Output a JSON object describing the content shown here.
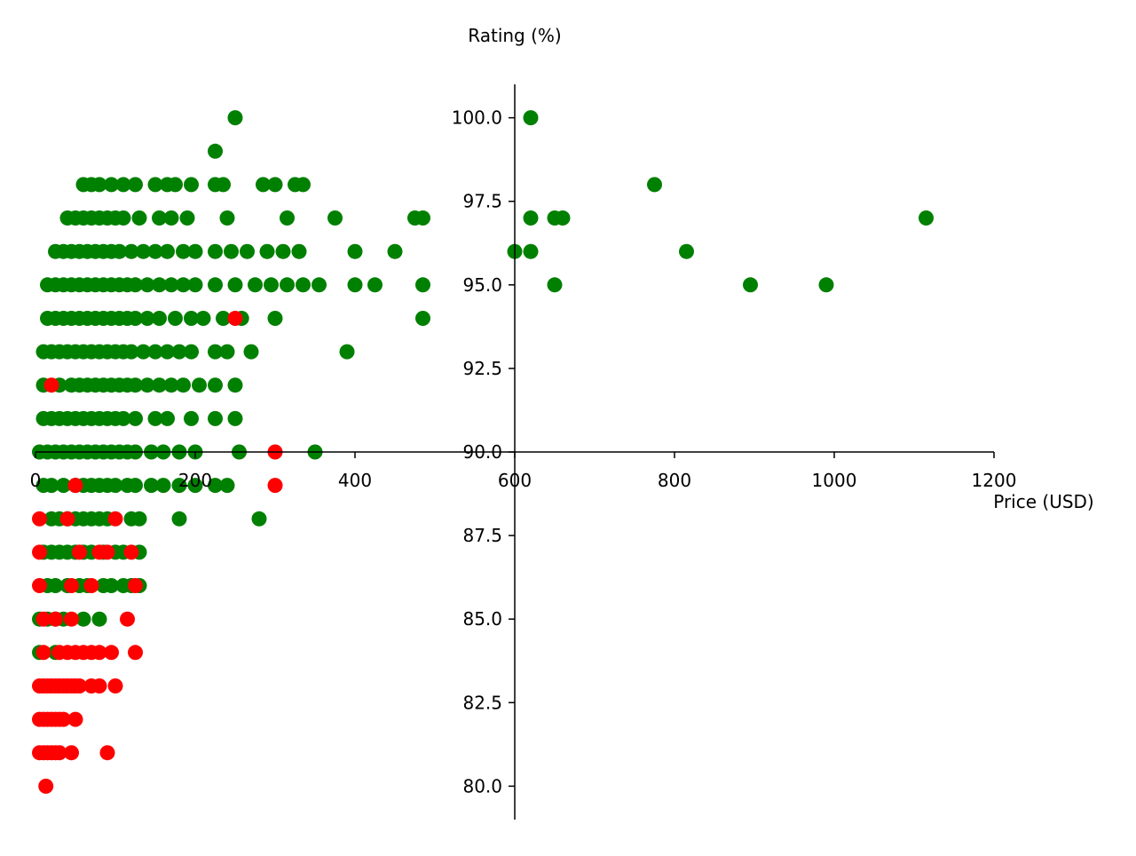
{
  "chart_data": {
    "type": "scatter",
    "title": "",
    "xlabel": "Price (USD)",
    "ylabel": "Rating (%)",
    "xlim": [
      0,
      1200
    ],
    "ylim": [
      79,
      101
    ],
    "x_ticks": [
      0,
      200,
      400,
      600,
      800,
      1000,
      1200
    ],
    "y_ticks": [
      80.0,
      82.5,
      85.0,
      87.5,
      90.0,
      92.5,
      95.0,
      97.5,
      100.0
    ],
    "x_tick_labels": [
      "0",
      "200",
      "400",
      "600",
      "800",
      "1000",
      "1200"
    ],
    "y_tick_labels": [
      "80.0",
      "82.5",
      "85.0",
      "87.5",
      "90.0",
      "92.5",
      "95.0",
      "97.5",
      "100.0"
    ],
    "spines": "centered at x=600, y=90",
    "grid": false,
    "legend": "none",
    "series": [
      {
        "color": "#008000",
        "points": [
          [
            250,
            100
          ],
          [
            225,
            99
          ],
          [
            620,
            100
          ],
          [
            60,
            98
          ],
          [
            70,
            98
          ],
          [
            80,
            98
          ],
          [
            95,
            98
          ],
          [
            110,
            98
          ],
          [
            125,
            98
          ],
          [
            150,
            98
          ],
          [
            165,
            98
          ],
          [
            175,
            98
          ],
          [
            195,
            98
          ],
          [
            225,
            98
          ],
          [
            235,
            98
          ],
          [
            285,
            98
          ],
          [
            300,
            98
          ],
          [
            325,
            98
          ],
          [
            335,
            98
          ],
          [
            775,
            98
          ],
          [
            40,
            97
          ],
          [
            50,
            97
          ],
          [
            60,
            97
          ],
          [
            70,
            97
          ],
          [
            80,
            97
          ],
          [
            90,
            97
          ],
          [
            100,
            97
          ],
          [
            110,
            97
          ],
          [
            130,
            97
          ],
          [
            155,
            97
          ],
          [
            170,
            97
          ],
          [
            190,
            97
          ],
          [
            240,
            97
          ],
          [
            315,
            97
          ],
          [
            375,
            97
          ],
          [
            475,
            97
          ],
          [
            485,
            97
          ],
          [
            620,
            97
          ],
          [
            650,
            97
          ],
          [
            660,
            97
          ],
          [
            1115,
            97
          ],
          [
            25,
            96
          ],
          [
            35,
            96
          ],
          [
            45,
            96
          ],
          [
            55,
            96
          ],
          [
            65,
            96
          ],
          [
            75,
            96
          ],
          [
            85,
            96
          ],
          [
            95,
            96
          ],
          [
            105,
            96
          ],
          [
            120,
            96
          ],
          [
            135,
            96
          ],
          [
            150,
            96
          ],
          [
            165,
            96
          ],
          [
            185,
            96
          ],
          [
            200,
            96
          ],
          [
            225,
            96
          ],
          [
            245,
            96
          ],
          [
            265,
            96
          ],
          [
            290,
            96
          ],
          [
            310,
            96
          ],
          [
            330,
            96
          ],
          [
            400,
            96
          ],
          [
            450,
            96
          ],
          [
            600,
            96
          ],
          [
            620,
            96
          ],
          [
            815,
            96
          ],
          [
            15,
            95
          ],
          [
            25,
            95
          ],
          [
            35,
            95
          ],
          [
            45,
            95
          ],
          [
            55,
            95
          ],
          [
            65,
            95
          ],
          [
            75,
            95
          ],
          [
            85,
            95
          ],
          [
            95,
            95
          ],
          [
            105,
            95
          ],
          [
            115,
            95
          ],
          [
            125,
            95
          ],
          [
            140,
            95
          ],
          [
            155,
            95
          ],
          [
            170,
            95
          ],
          [
            185,
            95
          ],
          [
            200,
            95
          ],
          [
            225,
            95
          ],
          [
            250,
            95
          ],
          [
            275,
            95
          ],
          [
            295,
            95
          ],
          [
            315,
            95
          ],
          [
            335,
            95
          ],
          [
            355,
            95
          ],
          [
            400,
            95
          ],
          [
            425,
            95
          ],
          [
            485,
            95
          ],
          [
            650,
            95
          ],
          [
            895,
            95
          ],
          [
            990,
            95
          ],
          [
            15,
            94
          ],
          [
            25,
            94
          ],
          [
            35,
            94
          ],
          [
            45,
            94
          ],
          [
            55,
            94
          ],
          [
            65,
            94
          ],
          [
            75,
            94
          ],
          [
            85,
            94
          ],
          [
            95,
            94
          ],
          [
            105,
            94
          ],
          [
            115,
            94
          ],
          [
            125,
            94
          ],
          [
            140,
            94
          ],
          [
            155,
            94
          ],
          [
            175,
            94
          ],
          [
            195,
            94
          ],
          [
            210,
            94
          ],
          [
            235,
            94
          ],
          [
            258,
            94
          ],
          [
            300,
            94
          ],
          [
            485,
            94
          ],
          [
            10,
            93
          ],
          [
            20,
            93
          ],
          [
            30,
            93
          ],
          [
            40,
            93
          ],
          [
            50,
            93
          ],
          [
            60,
            93
          ],
          [
            70,
            93
          ],
          [
            80,
            93
          ],
          [
            90,
            93
          ],
          [
            100,
            93
          ],
          [
            110,
            93
          ],
          [
            120,
            93
          ],
          [
            135,
            93
          ],
          [
            150,
            93
          ],
          [
            165,
            93
          ],
          [
            180,
            93
          ],
          [
            195,
            93
          ],
          [
            225,
            93
          ],
          [
            240,
            93
          ],
          [
            270,
            93
          ],
          [
            390,
            93
          ],
          [
            10,
            92
          ],
          [
            30,
            92
          ],
          [
            45,
            92
          ],
          [
            55,
            92
          ],
          [
            65,
            92
          ],
          [
            75,
            92
          ],
          [
            85,
            92
          ],
          [
            95,
            92
          ],
          [
            105,
            92
          ],
          [
            115,
            92
          ],
          [
            125,
            92
          ],
          [
            140,
            92
          ],
          [
            155,
            92
          ],
          [
            170,
            92
          ],
          [
            185,
            92
          ],
          [
            205,
            92
          ],
          [
            225,
            92
          ],
          [
            250,
            92
          ],
          [
            10,
            91
          ],
          [
            20,
            91
          ],
          [
            30,
            91
          ],
          [
            40,
            91
          ],
          [
            50,
            91
          ],
          [
            60,
            91
          ],
          [
            70,
            91
          ],
          [
            80,
            91
          ],
          [
            90,
            91
          ],
          [
            100,
            91
          ],
          [
            110,
            91
          ],
          [
            125,
            91
          ],
          [
            150,
            91
          ],
          [
            165,
            91
          ],
          [
            195,
            91
          ],
          [
            225,
            91
          ],
          [
            250,
            91
          ],
          [
            5,
            90
          ],
          [
            15,
            90
          ],
          [
            25,
            90
          ],
          [
            35,
            90
          ],
          [
            45,
            90
          ],
          [
            55,
            90
          ],
          [
            65,
            90
          ],
          [
            75,
            90
          ],
          [
            85,
            90
          ],
          [
            95,
            90
          ],
          [
            105,
            90
          ],
          [
            115,
            90
          ],
          [
            125,
            90
          ],
          [
            145,
            90
          ],
          [
            160,
            90
          ],
          [
            180,
            90
          ],
          [
            200,
            90
          ],
          [
            255,
            90
          ],
          [
            350,
            90
          ],
          [
            10,
            89
          ],
          [
            20,
            89
          ],
          [
            35,
            89
          ],
          [
            50,
            89
          ],
          [
            60,
            89
          ],
          [
            70,
            89
          ],
          [
            80,
            89
          ],
          [
            90,
            89
          ],
          [
            100,
            89
          ],
          [
            115,
            89
          ],
          [
            125,
            89
          ],
          [
            145,
            89
          ],
          [
            160,
            89
          ],
          [
            180,
            89
          ],
          [
            200,
            89
          ],
          [
            225,
            89
          ],
          [
            240,
            89
          ],
          [
            20,
            88
          ],
          [
            30,
            88
          ],
          [
            40,
            88
          ],
          [
            50,
            88
          ],
          [
            60,
            88
          ],
          [
            70,
            88
          ],
          [
            80,
            88
          ],
          [
            90,
            88
          ],
          [
            120,
            88
          ],
          [
            130,
            88
          ],
          [
            180,
            88
          ],
          [
            280,
            88
          ],
          [
            10,
            87
          ],
          [
            20,
            87
          ],
          [
            30,
            87
          ],
          [
            40,
            87
          ],
          [
            50,
            87
          ],
          [
            60,
            87
          ],
          [
            70,
            87
          ],
          [
            85,
            87
          ],
          [
            100,
            87
          ],
          [
            110,
            87
          ],
          [
            130,
            87
          ],
          [
            15,
            86
          ],
          [
            25,
            86
          ],
          [
            40,
            86
          ],
          [
            55,
            86
          ],
          [
            65,
            86
          ],
          [
            85,
            86
          ],
          [
            95,
            86
          ],
          [
            110,
            86
          ],
          [
            120,
            86
          ],
          [
            130,
            86
          ],
          [
            5,
            85
          ],
          [
            15,
            85
          ],
          [
            25,
            85
          ],
          [
            35,
            85
          ],
          [
            60,
            85
          ],
          [
            80,
            85
          ],
          [
            5,
            84
          ],
          [
            25,
            84
          ]
        ]
      },
      {
        "color": "#ff0000",
        "points": [
          [
            250,
            94
          ],
          [
            20,
            92
          ],
          [
            300,
            90
          ],
          [
            300,
            89
          ],
          [
            50,
            89
          ],
          [
            5,
            88
          ],
          [
            40,
            88
          ],
          [
            100,
            88
          ],
          [
            5,
            87
          ],
          [
            55,
            87
          ],
          [
            80,
            87
          ],
          [
            90,
            87
          ],
          [
            120,
            87
          ],
          [
            5,
            86
          ],
          [
            45,
            86
          ],
          [
            70,
            86
          ],
          [
            125,
            86
          ],
          [
            10,
            85
          ],
          [
            25,
            85
          ],
          [
            45,
            85
          ],
          [
            115,
            85
          ],
          [
            10,
            84
          ],
          [
            30,
            84
          ],
          [
            40,
            84
          ],
          [
            50,
            84
          ],
          [
            60,
            84
          ],
          [
            70,
            84
          ],
          [
            80,
            84
          ],
          [
            95,
            84
          ],
          [
            125,
            84
          ],
          [
            5,
            83
          ],
          [
            10,
            83
          ],
          [
            15,
            83
          ],
          [
            20,
            83
          ],
          [
            25,
            83
          ],
          [
            30,
            83
          ],
          [
            35,
            83
          ],
          [
            40,
            83
          ],
          [
            45,
            83
          ],
          [
            50,
            83
          ],
          [
            55,
            83
          ],
          [
            70,
            83
          ],
          [
            80,
            83
          ],
          [
            100,
            83
          ],
          [
            5,
            82
          ],
          [
            10,
            82
          ],
          [
            15,
            82
          ],
          [
            20,
            82
          ],
          [
            25,
            82
          ],
          [
            30,
            82
          ],
          [
            35,
            82
          ],
          [
            50,
            82
          ],
          [
            5,
            81
          ],
          [
            10,
            81
          ],
          [
            15,
            81
          ],
          [
            20,
            81
          ],
          [
            25,
            81
          ],
          [
            30,
            81
          ],
          [
            45,
            81
          ],
          [
            90,
            81
          ],
          [
            13,
            80
          ]
        ]
      }
    ]
  }
}
